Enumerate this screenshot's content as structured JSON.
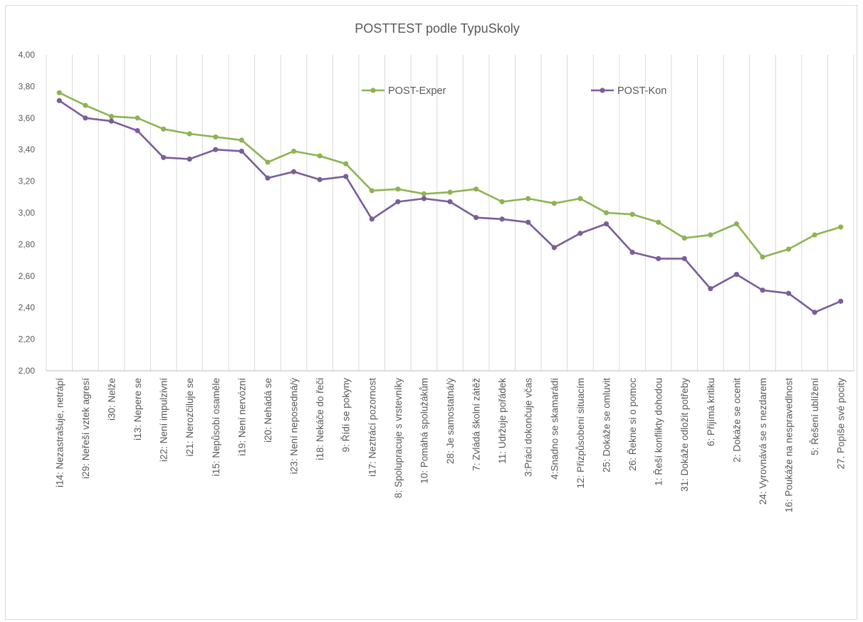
{
  "chart_data": {
    "type": "line",
    "title": "POSTTEST podle TypuSkoly",
    "xlabel": "",
    "ylabel": "",
    "ylim": [
      2.0,
      4.0
    ],
    "yticks": [
      "2,00",
      "2,20",
      "2,40",
      "2,60",
      "2,80",
      "3,00",
      "3,20",
      "3,40",
      "3,60",
      "3,80",
      "4,00"
    ],
    "grid": "vertical category gridlines",
    "legend_position": "inside-top",
    "categories": [
      "i14: Nezastrašuje, netrápí",
      "i29: Neřeší vztek agresí",
      "i30: Nelže",
      "i13: Nepere se",
      "i22: Není impulzivní",
      "i21: Nerozčiluje se",
      "i15: Nepůsobí osaměle",
      "i19: Není nervózní",
      "i20: Nehádá se",
      "i23: Není neposedná/ý",
      "i18: Nekáče do řeči",
      "9: Řídí se pokyny",
      "i17: Neztrácí pozornost",
      "8: Spolupracuje s vrstevníky",
      "10: Pomáhá spolužákům",
      "28: Je samostatná/ý",
      "7: Zvládá školní zátěž",
      "11: Udržuje pořádek",
      "3:Práci dokončuje včas",
      "4:Snadno se skamarádí",
      "12: Přizpůsobení situacím",
      "25: Dokáže se omluvit",
      "26: Řekne si o pomoc",
      "1: Řeší konflikty dohodou",
      "31: Dokáže odložit potřeby",
      "6: Přijímá kritiku",
      "2: Dokáže se ocenit",
      "24: Vyrovnává se s nezdarem",
      "16: Poukáže na nespravedlnost",
      "5: Řešení ublížení",
      "27. Popíše své pocity"
    ],
    "series": [
      {
        "name": "POST-Exper",
        "color": "#8cb453",
        "values": [
          3.76,
          3.68,
          3.61,
          3.6,
          3.53,
          3.5,
          3.48,
          3.46,
          3.32,
          3.39,
          3.36,
          3.31,
          3.14,
          3.15,
          3.12,
          3.13,
          3.15,
          3.07,
          3.09,
          3.06,
          3.09,
          3.0,
          2.99,
          2.94,
          2.84,
          2.86,
          2.93,
          2.72,
          2.77,
          2.86,
          2.91
        ]
      },
      {
        "name": "POST-Kon",
        "color": "#7a5d9a",
        "values": [
          3.71,
          3.6,
          3.58,
          3.52,
          3.35,
          3.34,
          3.4,
          3.39,
          3.22,
          3.26,
          3.21,
          3.23,
          2.96,
          3.07,
          3.09,
          3.07,
          2.97,
          2.96,
          2.94,
          2.78,
          2.87,
          2.93,
          2.75,
          2.71,
          2.71,
          2.52,
          2.61,
          2.51,
          2.49,
          2.37,
          2.44
        ]
      }
    ]
  }
}
